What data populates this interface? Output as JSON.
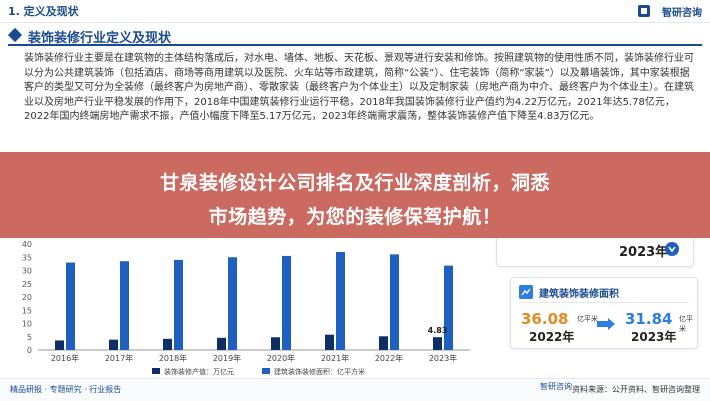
{
  "header": {
    "section": "1. 定义及现状",
    "brand": "智研咨询"
  },
  "section_title": "装饰装修行业定义及现状",
  "paragraph": "装饰装修行业主要是在建筑物的主体结构落成后，对水电、墙体、地板、天花板、景观等进行安装和修饰。按照建筑物的使用性质不同，装饰装修行业可以分为公共建筑装饰（包括酒店、商场等商用建筑以及医院、火车站等市政建筑，简称“公装”）、住宅装饰（简称“家装”）以及幕墙装饰，其中家装根据客户的类型又可分为全装修（最终客户为房地产商）、零散家装（最终客户为个体业主）以及定制家装（房地产商为中介、最终客户为个体业主）。在建筑业以及房地产行业平稳发展的作用下，2018年中国建筑装修行业运行平稳，2018年我国装饰装修行业产值约为4.22万亿元，2021年达5.78亿元，2022年国内终端房地产需求不振，产值小幅度下降至5.17万亿元，2023年终端需求震荡，整体装饰装修产值下降至4.83万亿元。",
  "overlay": {
    "line1": "甘泉装修设计公司排名及行业深度剖析，洞悉",
    "line2": "市场趋势，为您的装修保驾护航！"
  },
  "card_top": {
    "year": "2023年"
  },
  "card_area": {
    "title": "建筑装饰装修面积",
    "value_1": "36.08",
    "unit_1": "亿平米",
    "year_1": "2022年",
    "value_2": "31.84",
    "unit_2": "亿平米",
    "year_2": "2023年"
  },
  "footer": {
    "left": "精品研报 · 专题研究 · 行业报告",
    "right": "资料来源：公开资料、智研咨询整理",
    "logo": "智研咨询"
  },
  "colors": {
    "primary": "#1b4b8f",
    "bar_blue": "#1f5fbf",
    "bar_dark": "#0e2f66",
    "overlay": "#c65f55",
    "orange": "#e58a1f"
  },
  "chart_data": {
    "type": "bar",
    "categories": [
      "2016年",
      "2017年",
      "2018年",
      "2019年",
      "2020年",
      "2021年",
      "2022年",
      "2023年"
    ],
    "series": [
      {
        "name": "装饰装修产值：万亿元",
        "values": [
          3.6,
          3.9,
          4.22,
          4.6,
          4.8,
          5.78,
          5.17,
          4.83
        ]
      },
      {
        "name": "建筑装饰装修面积：亿平方米",
        "values": [
          33,
          33.5,
          34,
          35,
          35.5,
          37,
          36.08,
          31.84
        ]
      }
    ],
    "data_labels": [
      "4.83"
    ],
    "axis_ticks": [
      "0",
      "5",
      "10",
      "15",
      "20",
      "25",
      "30",
      "35",
      "40"
    ],
    "ylim": [
      0,
      40
    ],
    "grid": false,
    "legend": "bottom"
  }
}
